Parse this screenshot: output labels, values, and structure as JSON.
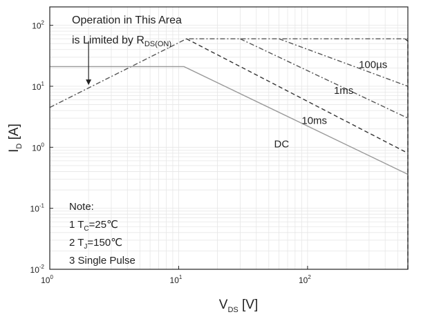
{
  "chart_data": {
    "type": "line",
    "title": "",
    "xlabel": {
      "main": "V",
      "sub": "DS",
      "unit": " [V]"
    },
    "ylabel": {
      "main": "I",
      "sub": "D",
      "unit": " [A]"
    },
    "x_scale": "log",
    "y_scale": "log",
    "xlim": [
      1,
      600
    ],
    "ylim": [
      0.01,
      200
    ],
    "grid": true,
    "x_ticks": [
      {
        "base": "10",
        "exp": "0",
        "value": 1
      },
      {
        "base": "10",
        "exp": "1",
        "value": 10
      },
      {
        "base": "10",
        "exp": "2",
        "value": 100
      }
    ],
    "y_ticks": [
      {
        "base": "10",
        "exp": "-2",
        "value": 0.01
      },
      {
        "base": "10",
        "exp": "-1",
        "value": 0.1
      },
      {
        "base": "10",
        "exp": "0",
        "value": 1
      },
      {
        "base": "10",
        "exp": "1",
        "value": 10
      },
      {
        "base": "10",
        "exp": "2",
        "value": 100
      }
    ],
    "series": [
      {
        "name": "100µs",
        "style": "dash-dot",
        "color": "#555555",
        "points": [
          [
            1,
            4.5
          ],
          [
            11.5,
            60
          ],
          [
            600,
            60
          ]
        ]
      },
      {
        "name": "",
        "style": "dash-dot",
        "color": "#555555",
        "points": [
          [
            60,
            60
          ],
          [
            600,
            10
          ]
        ]
      },
      {
        "name": "1ms",
        "style": "dash-dot",
        "color": "#555555",
        "points": [
          [
            30,
            60
          ],
          [
            600,
            3
          ]
        ]
      },
      {
        "name": "10ms",
        "style": "dashed",
        "color": "#333333",
        "points": [
          [
            11.5,
            60
          ],
          [
            600,
            0.8
          ]
        ]
      },
      {
        "name": "DC",
        "style": "solid",
        "color": "#999999",
        "points": [
          [
            1,
            21
          ],
          [
            11,
            21
          ],
          [
            600,
            0.36
          ]
        ]
      },
      {
        "name": "",
        "style": "dashed",
        "color": "#333333",
        "points": [
          [
            570,
            60
          ],
          [
            600,
            55
          ],
          [
            600,
            0.01
          ]
        ]
      }
    ],
    "series_labels": [
      {
        "text": "100µs",
        "at": [
          250,
          20
        ]
      },
      {
        "text": "1ms",
        "at": [
          160,
          7.5
        ]
      },
      {
        "text": "10ms",
        "at": [
          90,
          2.4
        ]
      },
      {
        "text": "DC",
        "at": [
          55,
          1.0
        ]
      }
    ],
    "annotation": {
      "line1": "Operation in This Area",
      "line2_prefix": "is Limited by R",
      "line2_sub": "DS(ON)",
      "arrow_from": [
        2.0,
        55
      ],
      "arrow_to": [
        2.0,
        10.5
      ]
    },
    "note": {
      "title": "Note:",
      "items": [
        {
          "prefix": "1 T",
          "sub": "C",
          "suffix": "=25℃"
        },
        {
          "prefix": "2 T",
          "sub": "J",
          "suffix": "=150℃"
        },
        {
          "prefix": "3 Single Pulse",
          "sub": "",
          "suffix": ""
        }
      ]
    }
  }
}
